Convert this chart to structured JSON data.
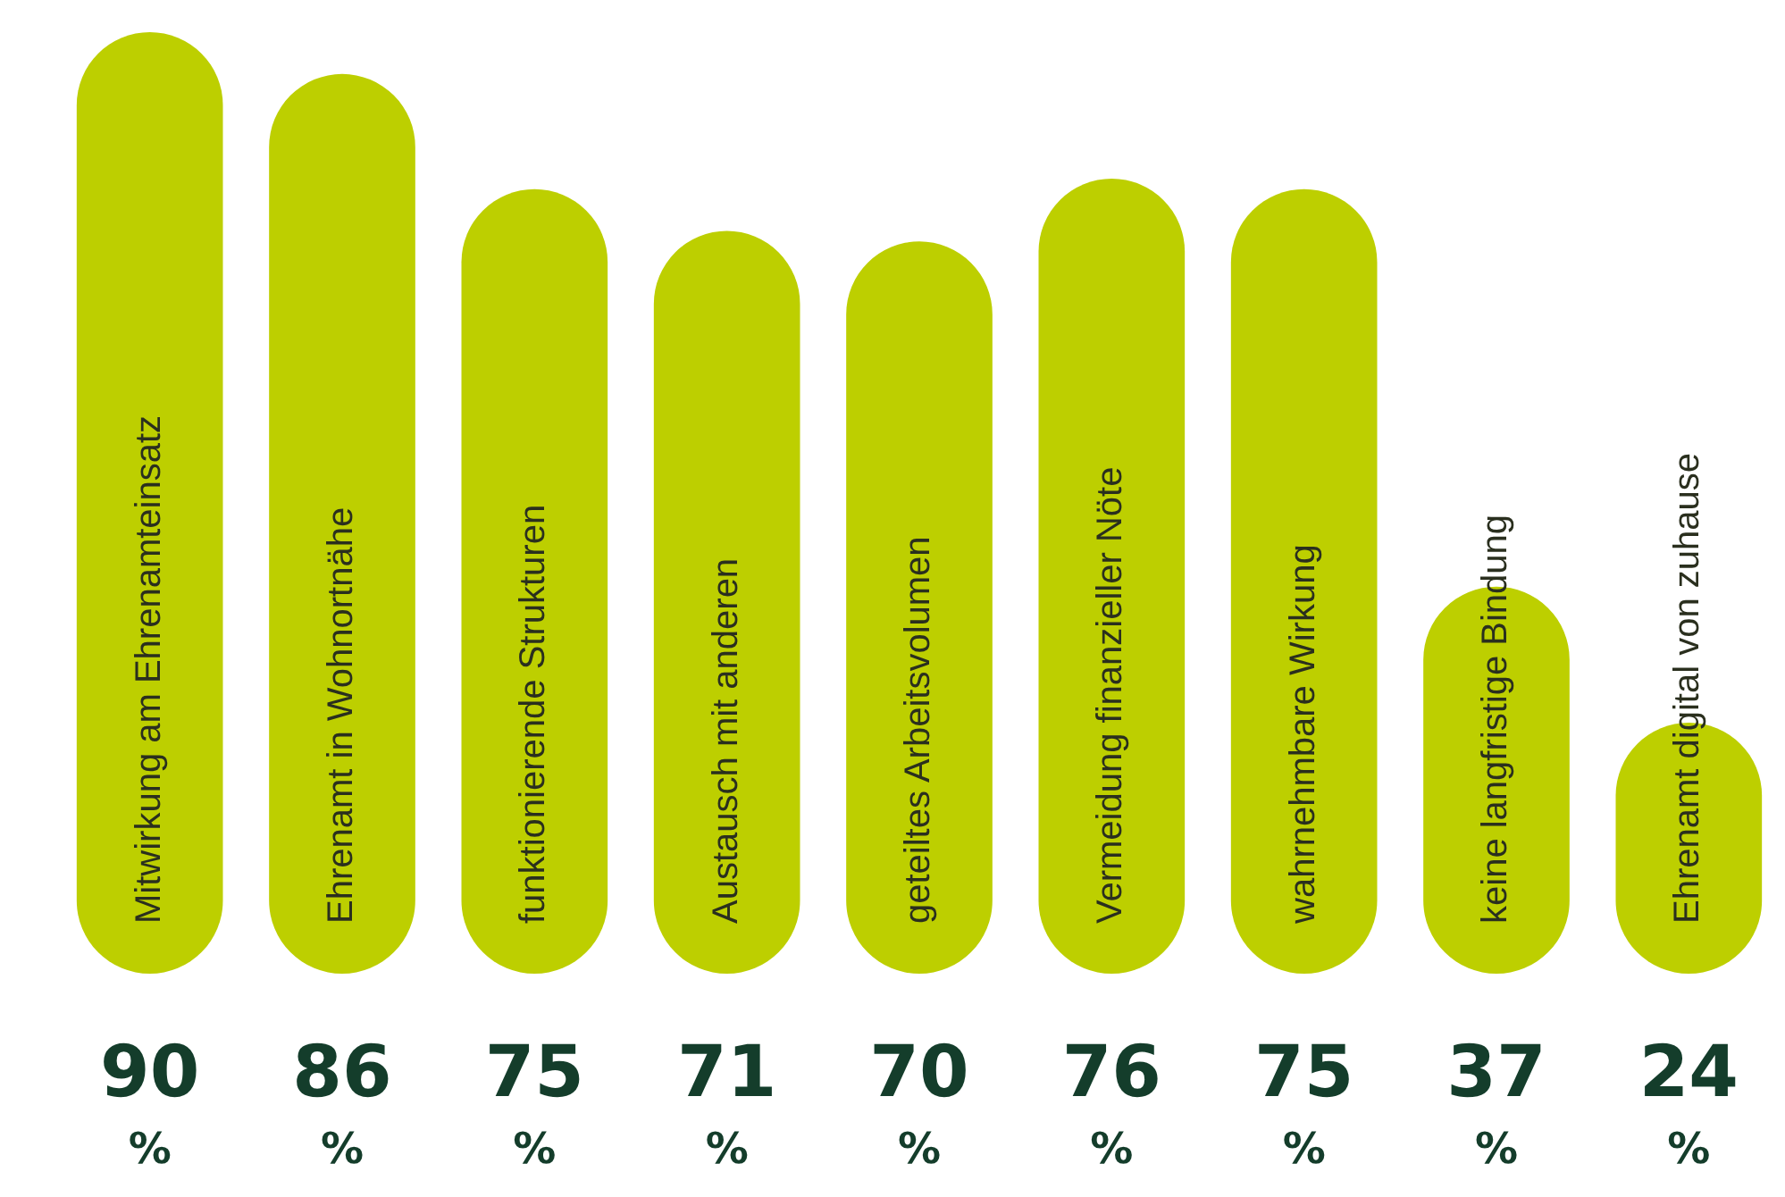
{
  "chart_data": {
    "type": "bar",
    "categories": [
      "Mitwirkung am Ehrenamteinsatz",
      "Ehrenamt in Wohnortnähe",
      "funktionierende Strukturen",
      "Austausch mit anderen",
      "geteiltes Arbeitsvolumen",
      "Vermeidung finanzieller Nöte",
      "wahrnehmbare Wirkung",
      "keine langfristige Bindung",
      "Ehrenamt digital von zuhause"
    ],
    "values": [
      90,
      86,
      75,
      71,
      70,
      76,
      75,
      37,
      24
    ],
    "value_labels": [
      "90 %",
      "86 %",
      "75 %",
      "71 %",
      "70 %",
      "76 %",
      "75 %",
      "37 %",
      "24 %"
    ],
    "color": "#bdcf00",
    "tick_labels": "x",
    "legend": false
  }
}
